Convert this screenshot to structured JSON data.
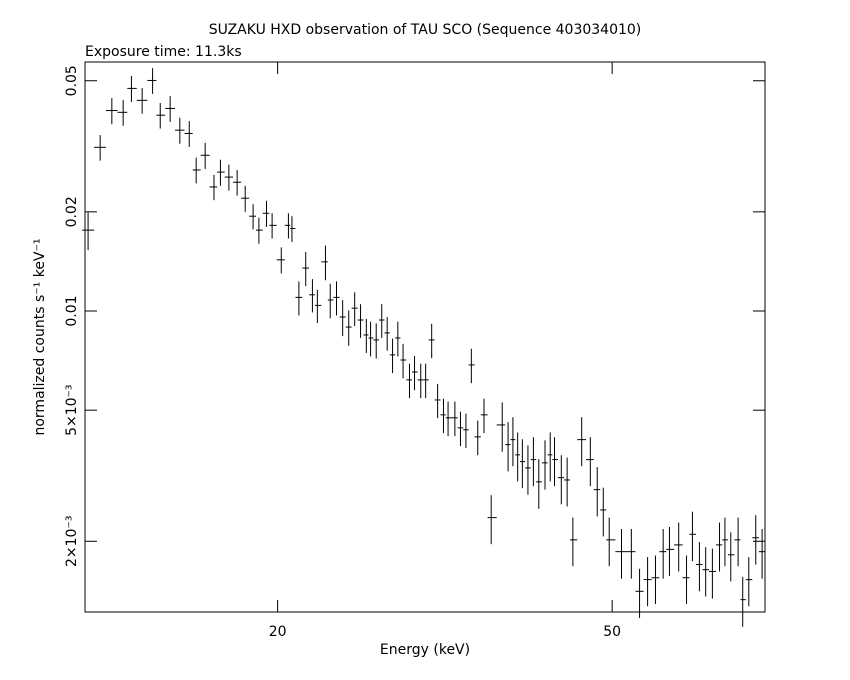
{
  "chart_data": {
    "type": "errorbar",
    "title": "SUZAKU HXD observation of TAU SCO (Sequence 403034010)",
    "subtitle": "Exposure time: 11.3ks",
    "x_label": "Energy (keV)",
    "y_label": "normalized counts s⁻¹ keV⁻¹",
    "log_x": true,
    "log_y": true,
    "color": "#000000",
    "xlim": [
      11.8,
      76
    ],
    "ylim": [
      0.00122,
      0.057
    ],
    "xticks": [
      20,
      50
    ],
    "yticks": [
      0.05,
      0.02,
      0.01,
      {
        "value": 0.005,
        "label": "5×10⁻³"
      },
      {
        "value": 0.002,
        "label": "2×10⁻³"
      }
    ],
    "x": [
      11.9,
      12.3,
      12.7,
      13.1,
      13.4,
      13.8,
      14.2,
      14.5,
      14.9,
      15.3,
      15.7,
      16.0,
      16.4,
      16.8,
      17.1,
      17.5,
      17.9,
      18.3,
      18.7,
      19.0,
      19.4,
      19.7,
      20.2,
      20.6,
      20.8,
      21.2,
      21.6,
      22.0,
      22.3,
      22.8,
      23.1,
      23.5,
      23.9,
      24.3,
      24.7,
      25.1,
      25.5,
      25.8,
      26.2,
      26.6,
      27.0,
      27.4,
      27.8,
      28.2,
      28.7,
      29.1,
      29.6,
      30.0,
      30.5,
      31.0,
      31.5,
      31.9,
      32.5,
      33.0,
      33.5,
      34.0,
      34.6,
      35.2,
      35.9,
      37.0,
      37.6,
      38.1,
      38.6,
      39.1,
      39.7,
      40.3,
      40.9,
      41.6,
      42.2,
      42.7,
      43.5,
      44.2,
      44.9,
      46.0,
      47.1,
      48.0,
      48.8,
      49.6,
      51.3,
      52.7,
      53.9,
      55.1,
      56.3,
      57.5,
      58.5,
      60.0,
      61.3,
      62.3,
      63.5,
      64.6,
      65.8,
      67.1,
      68.1,
      69.2,
      70.6,
      71.5,
      72.7,
      74.1,
      75.4
    ],
    "values": [
      0.0176,
      0.0314,
      0.0406,
      0.0401,
      0.0474,
      0.0436,
      0.0501,
      0.0393,
      0.0412,
      0.0354,
      0.0346,
      0.0268,
      0.0297,
      0.0238,
      0.0264,
      0.0255,
      0.0246,
      0.022,
      0.0194,
      0.0176,
      0.0198,
      0.0182,
      0.0143,
      0.0182,
      0.0178,
      0.011,
      0.0135,
      0.0112,
      0.0104,
      0.0141,
      0.0108,
      0.011,
      0.00959,
      0.00894,
      0.0102,
      0.00939,
      0.00846,
      0.00828,
      0.00817,
      0.00939,
      0.00858,
      0.00736,
      0.00828,
      0.0071,
      0.00618,
      0.00653,
      0.00618,
      0.00618,
      0.00817,
      0.00537,
      0.00484,
      0.00474,
      0.00474,
      0.00442,
      0.00436,
      0.00686,
      0.00415,
      0.00484,
      0.00236,
      0.00451,
      0.00393,
      0.00407,
      0.00366,
      0.00349,
      0.00334,
      0.00354,
      0.00303,
      0.00346,
      0.00366,
      0.00354,
      0.00312,
      0.00307,
      0.00202,
      0.00407,
      0.00354,
      0.00287,
      0.00249,
      0.00202,
      0.00186,
      0.00186,
      0.00141,
      0.00153,
      0.00155,
      0.00186,
      0.00189,
      0.00195,
      0.00155,
      0.0021,
      0.0017,
      0.00164,
      0.00162,
      0.00195,
      0.00202,
      0.00182,
      0.00202,
      0.00133,
      0.00153,
      0.00205,
      0.00186
    ],
    "errors": [
      0.0023,
      0.0028,
      0.0037,
      0.0036,
      0.0043,
      0.0039,
      0.0045,
      0.0035,
      0.0037,
      0.0032,
      0.0031,
      0.0024,
      0.0027,
      0.0021,
      0.0024,
      0.0023,
      0.0022,
      0.002,
      0.0017,
      0.0016,
      0.0018,
      0.0016,
      0.0013,
      0.0016,
      0.0016,
      0.0013,
      0.0016,
      0.0013,
      0.0012,
      0.0017,
      0.0013,
      0.0013,
      0.0012,
      0.0011,
      0.0012,
      0.0011,
      0.001,
      0.001,
      0.001,
      0.0011,
      0.001,
      0.00088,
      0.001,
      0.00085,
      0.00074,
      0.00078,
      0.00074,
      0.00074,
      0.00098,
      0.00064,
      0.00058,
      0.00057,
      0.00057,
      0.00053,
      0.00052,
      0.00082,
      0.0005,
      0.00058,
      0.0004,
      0.00077,
      0.00067,
      0.00069,
      0.00062,
      0.00059,
      0.00057,
      0.0006,
      0.00052,
      0.00059,
      0.00062,
      0.0006,
      0.00053,
      0.00052,
      0.00034,
      0.00069,
      0.0006,
      0.00049,
      0.00042,
      0.00034,
      0.00032,
      0.00032,
      0.00024,
      0.00026,
      0.00026,
      0.00032,
      0.00032,
      0.00033,
      0.00026,
      0.00036,
      0.00029,
      0.00028,
      0.00028,
      0.00033,
      0.00034,
      0.00031,
      0.00034,
      0.00023,
      0.00026,
      0.00035,
      0.00032
    ]
  }
}
